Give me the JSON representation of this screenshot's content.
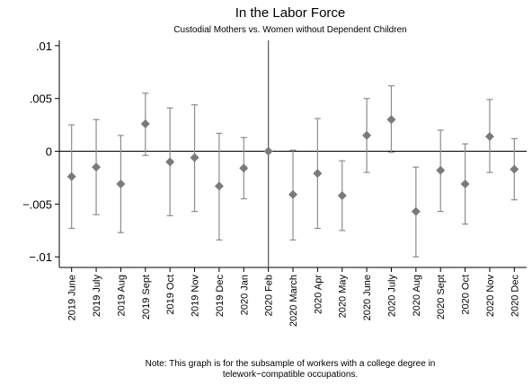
{
  "chart_data": {
    "type": "scatter",
    "title": "In the Labor Force",
    "subtitle": "Custodial Mothers vs. Women without Dependent Children",
    "xlabel": "",
    "ylabel": "",
    "ylim": [
      -0.011,
      0.0105
    ],
    "yticks": [
      -0.01,
      -0.005,
      0,
      0.005,
      0.01
    ],
    "ytick_labels": [
      "−.01",
      "−.005",
      "0",
      ".005",
      ".01"
    ],
    "reference_line_x": "2020 Feb",
    "reference_line_y": 0,
    "grid": false,
    "legend": "none",
    "marker": "diamond",
    "colors": {
      "marker": "#7a7a7a",
      "ci": "#8c8c8c",
      "refline": "#555555",
      "zero": "#000000"
    },
    "categories": [
      "2019 June",
      "2019 July",
      "2019 Aug",
      "2019 Sept",
      "2019 Oct",
      "2019 Nov",
      "2019 Dec",
      "2020 Jan",
      "2020 Feb",
      "2020 March",
      "2020 Apr",
      "2020 May",
      "2020 June",
      "2020 July",
      "2020 Aug",
      "2020 Sept",
      "2020 Oct",
      "2020 Nov",
      "2020 Dec"
    ],
    "values": [
      -0.0024,
      -0.0015,
      -0.0031,
      0.0026,
      -0.001,
      -0.0006,
      -0.0033,
      -0.0016,
      0.0,
      -0.0041,
      -0.0021,
      -0.0042,
      0.0015,
      0.003,
      -0.0057,
      -0.0018,
      -0.0031,
      0.0014,
      -0.0017
    ],
    "ci_low": [
      -0.0073,
      -0.006,
      -0.0077,
      -0.0004,
      -0.0061,
      -0.0057,
      -0.0084,
      -0.0045,
      null,
      -0.0084,
      -0.0073,
      -0.0075,
      -0.002,
      -0.0001,
      -0.01,
      -0.0057,
      -0.0069,
      -0.002,
      -0.0046
    ],
    "ci_high": [
      0.0025,
      0.003,
      0.0015,
      0.0055,
      0.0041,
      0.0044,
      0.0017,
      0.0013,
      null,
      0.0001,
      0.0031,
      -0.0009,
      0.005,
      0.0062,
      -0.0015,
      0.002,
      0.0007,
      0.0049,
      0.0012
    ]
  },
  "note": {
    "line1": "Note: This graph is for the subsample of workers with a college degree in",
    "line2": "telework−compatible occupations."
  }
}
